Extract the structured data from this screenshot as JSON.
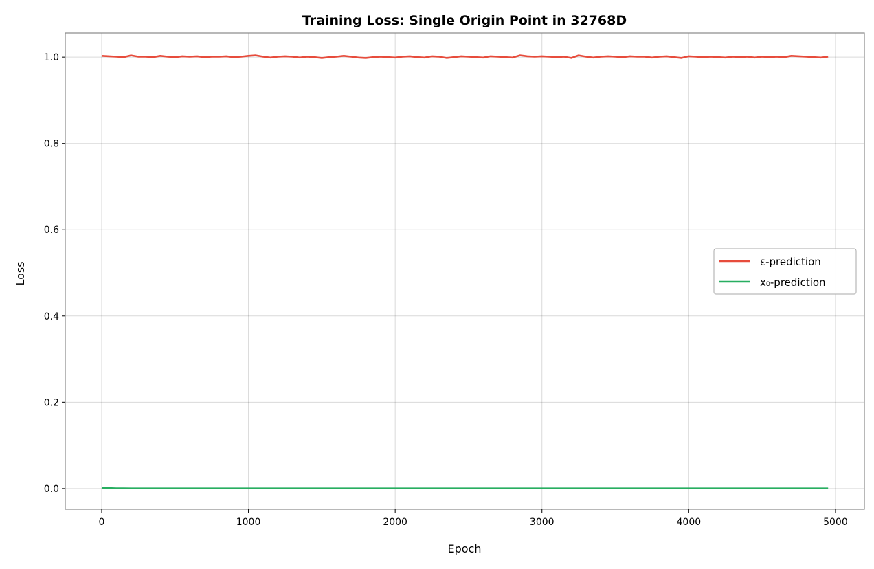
{
  "chart_data": {
    "type": "line",
    "title": "Training Loss: Single Origin Point in 32768D",
    "xlabel": "Epoch",
    "ylabel": "Loss",
    "xlim": [
      -248,
      5197
    ],
    "ylim": [
      -0.048,
      1.056
    ],
    "xticks": [
      0,
      1000,
      2000,
      3000,
      4000,
      5000
    ],
    "xtick_labels": [
      "0",
      "1000",
      "2000",
      "3000",
      "4000",
      "5000"
    ],
    "yticks": [
      0.0,
      0.2,
      0.4,
      0.6,
      0.8,
      1.0
    ],
    "ytick_labels": [
      "0.0",
      "0.2",
      "0.4",
      "0.6",
      "0.8",
      "1.0"
    ],
    "grid": true,
    "legend_placement": "center-right",
    "x_step": 50,
    "x_start": 0,
    "series": [
      {
        "name": "ε-prediction",
        "color": "#e74c3c",
        "values": [
          1.003,
          1.002,
          1.001,
          1.0,
          1.004,
          1.001,
          1.001,
          1.0,
          1.003,
          1.001,
          1.0,
          1.002,
          1.001,
          1.002,
          1.0,
          1.001,
          1.001,
          1.002,
          1.0,
          1.001,
          1.003,
          1.004,
          1.001,
          0.999,
          1.001,
          1.002,
          1.001,
          0.999,
          1.001,
          1.0,
          0.998,
          1.0,
          1.001,
          1.003,
          1.001,
          0.999,
          0.998,
          1.0,
          1.001,
          1.0,
          0.999,
          1.001,
          1.002,
          1.0,
          0.999,
          1.002,
          1.001,
          0.998,
          1.0,
          1.002,
          1.001,
          1.0,
          0.999,
          1.002,
          1.001,
          1.0,
          0.999,
          1.004,
          1.002,
          1.001,
          1.002,
          1.001,
          1.0,
          1.001,
          0.998,
          1.004,
          1.001,
          0.999,
          1.001,
          1.002,
          1.001,
          1.0,
          1.002,
          1.001,
          1.001,
          0.999,
          1.001,
          1.002,
          1.0,
          0.998,
          1.002,
          1.001,
          1.0,
          1.001,
          1.0,
          0.999,
          1.001,
          1.0,
          1.001,
          0.999,
          1.001,
          1.0,
          1.001,
          1.0,
          1.003,
          1.002,
          1.001,
          1.0,
          0.999,
          1.001
        ]
      },
      {
        "name": "x₀-prediction",
        "color": "#27ae60",
        "values": [
          0.002,
          0.001,
          0.0005,
          0.0004,
          0.0003,
          0.0003,
          0.0002,
          0.0002,
          0.0002,
          0.0002,
          0.0002,
          0.0002,
          0.0002,
          0.0002,
          0.0002,
          0.0002,
          0.0002,
          0.0002,
          0.0002,
          0.0002,
          0.0002,
          0.0002,
          0.0002,
          0.0002,
          0.0002,
          0.0002,
          0.0002,
          0.0002,
          0.0002,
          0.0002,
          0.0002,
          0.0002,
          0.0002,
          0.0002,
          0.0002,
          0.0002,
          0.0002,
          0.0002,
          0.0002,
          0.0002,
          0.0002,
          0.0002,
          0.0002,
          0.0002,
          0.0002,
          0.0002,
          0.0002,
          0.0002,
          0.0002,
          0.0002,
          0.0002,
          0.0002,
          0.0002,
          0.0002,
          0.0002,
          0.0002,
          0.0002,
          0.0002,
          0.0002,
          0.0002,
          0.0002,
          0.0002,
          0.0002,
          0.0002,
          0.0002,
          0.0002,
          0.0002,
          0.0002,
          0.0002,
          0.0002,
          0.0002,
          0.0002,
          0.0002,
          0.0002,
          0.0002,
          0.0002,
          0.0002,
          0.0002,
          0.0002,
          0.0002,
          0.0002,
          0.0002,
          0.0002,
          0.0002,
          0.0002,
          0.0002,
          0.0002,
          0.0002,
          0.0002,
          0.0002,
          0.0002,
          0.0002,
          0.0002,
          0.0002,
          0.0002,
          0.0002,
          0.0002,
          0.0002,
          0.0002,
          0.0002
        ]
      }
    ]
  }
}
